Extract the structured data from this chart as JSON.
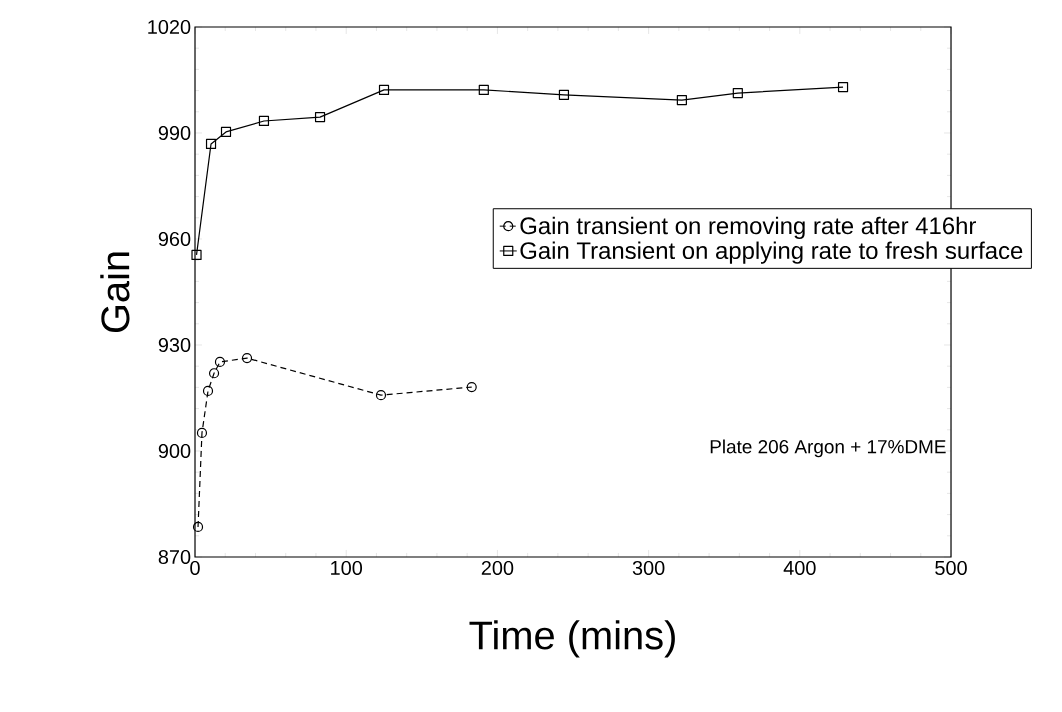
{
  "chart_data": {
    "type": "line",
    "xlabel": "Time (mins)",
    "ylabel": "Gain",
    "xlim": [
      0,
      500
    ],
    "ylim": [
      870,
      1020
    ],
    "xticks": [
      0,
      100,
      200,
      300,
      400,
      500
    ],
    "yticks": [
      870,
      900,
      930,
      960,
      990,
      1020
    ],
    "legend": "right",
    "grid": false,
    "annotations": [
      "Plate 206  Argon + 17%DME"
    ],
    "series": [
      {
        "name": "Gain transient on removing rate after 416hr",
        "color": "#000000",
        "marker": "circle",
        "line_style": "dashed",
        "x": [
          2,
          4.6,
          8.6,
          12.6,
          16.5,
          34.4,
          123,
          183
        ],
        "values": [
          878.5,
          905.1,
          917,
          922,
          925.2,
          926.3,
          915.8,
          918.1
        ]
      },
      {
        "name": "Gain Transient on applying rate to fresh surface",
        "color": "#000000",
        "marker": "square",
        "line_style": "solid",
        "x": [
          1,
          10.6,
          20.5,
          45.6,
          82.7,
          125,
          191,
          244,
          322,
          359,
          428.6
        ],
        "values": [
          955.5,
          986.9,
          990.3,
          993.4,
          994.5,
          1002.2,
          1002.2,
          1000.8,
          999.3,
          1001.3,
          1003
        ]
      }
    ]
  }
}
